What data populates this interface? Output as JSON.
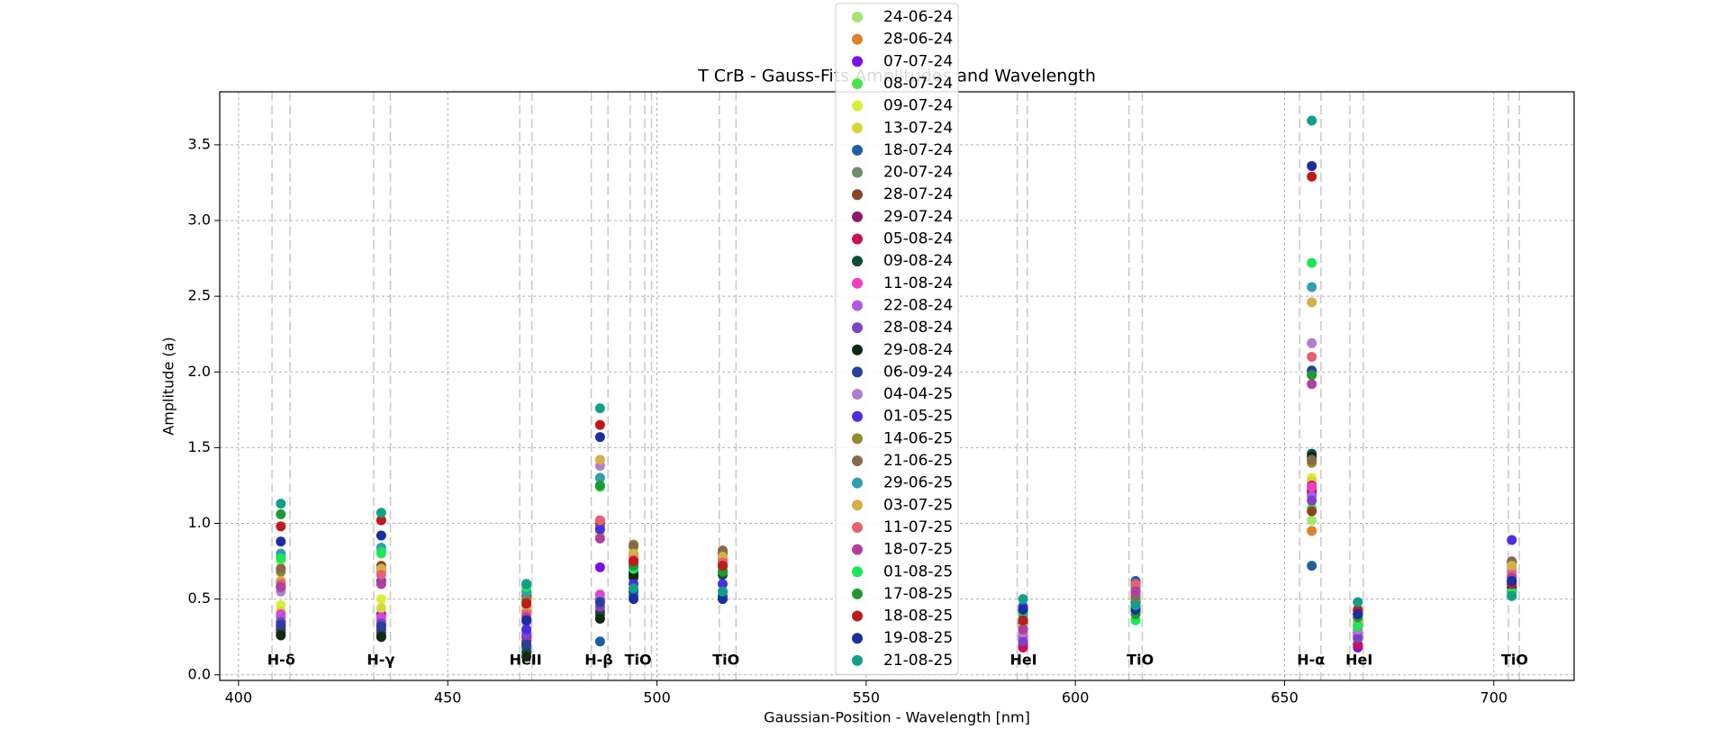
{
  "chart_data": {
    "type": "scatter",
    "title": "T CrB - Gauss-Fits Amplitudes and Wavelength",
    "x_label": "Gaussian-Position - Wavelength [nm]",
    "y_label": "Amplitude (a)",
    "xlim": [
      395.5,
      719.2
    ],
    "ylim": [
      -0.037,
      3.85
    ],
    "xticks": [
      400,
      450,
      500,
      550,
      600,
      650,
      700
    ],
    "yticks": [
      {
        "value": 0,
        "label": "0.0"
      },
      0.5,
      {
        "value": 1,
        "label": "1.0"
      },
      1.5,
      {
        "value": 2,
        "label": "2.0"
      },
      2.5,
      {
        "value": 3,
        "label": "3.0"
      },
      3.5
    ],
    "grid": true,
    "legend": "upper center",
    "window_lines": [
      408,
      412.3,
      432.3,
      436.3,
      467.2,
      470.1,
      484.3,
      488.3,
      493.6,
      497.1,
      498.7,
      514.9,
      518.9,
      586.1,
      588.5,
      612.8,
      616,
      653.6,
      658.7,
      665.6,
      668.8,
      703.5,
      706.1
    ],
    "features": [
      {
        "label": "H-δ",
        "x": 410.2
      },
      {
        "label": "H-γ",
        "x": 434.0
      },
      {
        "label": "HeII",
        "x": 468.6
      },
      {
        "label": "H-β",
        "x": 486.1
      },
      {
        "label": "TiO",
        "x": 495.5
      },
      {
        "label": "TiO",
        "x": 516.5
      },
      {
        "label": "HeI",
        "x": 587.6
      },
      {
        "label": "TiO",
        "x": 615.5
      },
      {
        "label": "H-α",
        "x": 656.3
      },
      {
        "label": "HeI",
        "x": 667.8
      },
      {
        "label": "TiO",
        "x": 705.0
      }
    ],
    "x": [
      410.1,
      434.1,
      468.8,
      486.4,
      494.4,
      515.7,
      587.5,
      614.4,
      656.5,
      667.5,
      704.3
    ],
    "series": [
      {
        "name": "24-06-24",
        "color": "#a6e36f",
        "values": [
          0.75,
          0.82,
          0.55,
          1.25,
          0.72,
          0.7,
          0.35,
          0.45,
          1.02,
          0.3,
          0.6
        ]
      },
      {
        "name": "28-06-24",
        "color": "#e0802a",
        "values": [
          0.6,
          0.68,
          0.42,
          0.98,
          0.78,
          0.76,
          0.28,
          0.55,
          0.95,
          0.25,
          0.7
        ]
      },
      {
        "name": "07-07-24",
        "color": "#7b0fe6",
        "values": [
          0.35,
          0.4,
          0.2,
          0.71,
          0.68,
          0.72,
          0.2,
          0.5,
          1.2,
          0.18,
          0.62
        ]
      },
      {
        "name": "08-07-24",
        "color": "#46e64a",
        "values": [
          0.78,
          0.8,
          0.6,
          1.24,
          0.7,
          0.7,
          0.38,
          0.45,
          1.1,
          0.35,
          0.55
        ]
      },
      {
        "name": "09-07-24",
        "color": "#d8ef3a",
        "values": [
          0.46,
          0.5,
          0.38,
          0.95,
          0.83,
          0.75,
          0.3,
          0.52,
          1.3,
          0.28,
          0.72
        ]
      },
      {
        "name": "13-07-24",
        "color": "#d6d63a",
        "values": [
          0.42,
          0.44,
          0.35,
          0.92,
          0.8,
          0.74,
          0.28,
          0.5,
          1.28,
          0.27,
          0.7
        ]
      },
      {
        "name": "18-07-24",
        "color": "#1f5fa0",
        "values": [
          0.3,
          0.28,
          0.18,
          0.22,
          0.52,
          0.52,
          0.3,
          0.62,
          0.72,
          0.2,
          0.55
        ]
      },
      {
        "name": "20-07-24",
        "color": "#6f8d6a",
        "values": [
          0.62,
          0.7,
          0.5,
          1.02,
          0.75,
          0.78,
          0.3,
          0.48,
          1.42,
          0.3,
          0.68
        ]
      },
      {
        "name": "28-07-24",
        "color": "#8b4526",
        "values": [
          0.7,
          0.72,
          0.52,
          1.0,
          0.8,
          0.8,
          0.25,
          0.5,
          1.08,
          0.28,
          0.74
        ]
      },
      {
        "name": "29-07-24",
        "color": "#8b1a6b",
        "values": [
          0.32,
          0.3,
          0.25,
          0.5,
          0.7,
          0.72,
          0.22,
          0.48,
          1.22,
          0.25,
          0.6
        ]
      },
      {
        "name": "05-08-24",
        "color": "#cc1050",
        "values": [
          0.3,
          0.33,
          0.22,
          0.42,
          0.66,
          0.7,
          0.18,
          0.55,
          1.25,
          0.2,
          0.62
        ]
      },
      {
        "name": "09-08-24",
        "color": "#0f4d3a",
        "values": [
          0.28,
          0.26,
          0.15,
          0.4,
          0.64,
          0.66,
          0.3,
          0.45,
          1.46,
          0.38,
          0.55
        ]
      },
      {
        "name": "11-08-24",
        "color": "#ee3fc0",
        "values": [
          0.4,
          0.38,
          0.3,
          0.53,
          0.75,
          0.76,
          0.26,
          0.58,
          1.24,
          0.28,
          0.65
        ]
      },
      {
        "name": "22-08-24",
        "color": "#b257e6",
        "values": [
          0.38,
          0.36,
          0.28,
          0.5,
          0.72,
          0.74,
          0.24,
          0.56,
          1.18,
          0.26,
          0.64
        ]
      },
      {
        "name": "28-08-24",
        "color": "#7c44c4",
        "values": [
          0.35,
          0.34,
          0.26,
          0.45,
          0.7,
          0.72,
          0.22,
          0.54,
          1.15,
          0.24,
          0.62
        ]
      },
      {
        "name": "29-08-24",
        "color": "#0f2a0f",
        "values": [
          0.26,
          0.25,
          0.12,
          0.37,
          0.66,
          0.68,
          0.34,
          0.42,
          1.44,
          0.4,
          0.58
        ]
      },
      {
        "name": "06-09-24",
        "color": "#2a3e9e",
        "values": [
          0.33,
          0.32,
          0.2,
          0.48,
          0.55,
          0.55,
          0.42,
          0.6,
          2.01,
          0.42,
          0.6
        ]
      },
      {
        "name": "04-04-25",
        "color": "#b07ed0",
        "values": [
          0.55,
          0.6,
          0.35,
          1.38,
          0.72,
          0.74,
          0.28,
          0.52,
          2.19,
          0.3,
          0.68
        ]
      },
      {
        "name": "01-05-25",
        "color": "#4a2ee6",
        "values": [
          0.58,
          0.62,
          0.3,
          0.96,
          0.6,
          0.6,
          0.45,
          0.55,
          1.98,
          0.4,
          0.89
        ]
      },
      {
        "name": "14-06-25",
        "color": "#8c8c30",
        "values": [
          0.68,
          0.7,
          0.5,
          1.25,
          0.86,
          0.82,
          0.32,
          0.5,
          1.4,
          0.35,
          0.74
        ]
      },
      {
        "name": "21-06-25",
        "color": "#866a4e",
        "values": [
          0.7,
          0.7,
          0.48,
          1.3,
          0.85,
          0.82,
          0.3,
          0.52,
          1.42,
          0.33,
          0.75
        ]
      },
      {
        "name": "29-06-25",
        "color": "#30a0b0",
        "values": [
          0.8,
          0.84,
          0.55,
          1.3,
          0.76,
          0.72,
          0.4,
          0.58,
          2.56,
          0.42,
          0.55
        ]
      },
      {
        "name": "03-07-25",
        "color": "#d4b048",
        "values": [
          0.62,
          0.7,
          0.45,
          1.42,
          0.8,
          0.78,
          0.32,
          0.55,
          2.46,
          0.35,
          0.72
        ]
      },
      {
        "name": "11-07-25",
        "color": "#e66070",
        "values": [
          0.6,
          0.66,
          0.4,
          1.02,
          0.76,
          0.74,
          0.3,
          0.6,
          2.1,
          0.32,
          0.66
        ]
      },
      {
        "name": "18-07-25",
        "color": "#b040a0",
        "values": [
          0.58,
          0.6,
          0.38,
          0.9,
          0.74,
          0.72,
          0.3,
          0.55,
          1.92,
          0.32,
          0.64
        ]
      },
      {
        "name": "01-08-25",
        "color": "#18e858",
        "values": [
          0.77,
          0.81,
          0.58,
          1.25,
          0.7,
          0.7,
          0.42,
          0.36,
          2.72,
          0.32,
          0.54
        ]
      },
      {
        "name": "17-08-25",
        "color": "#1f9a30",
        "values": [
          1.06,
          1.02,
          0.6,
          1.25,
          0.72,
          0.68,
          0.36,
          0.4,
          1.98,
          0.38,
          0.52
        ]
      },
      {
        "name": "18-08-25",
        "color": "#c01a1a",
        "values": [
          0.98,
          1.02,
          0.47,
          1.65,
          0.75,
          0.72,
          0.36,
          0.44,
          3.29,
          0.43,
          0.6
        ]
      },
      {
        "name": "19-08-25",
        "color": "#1a2ea0",
        "values": [
          0.88,
          0.92,
          0.36,
          1.57,
          0.5,
          0.5,
          0.43,
          0.43,
          3.36,
          0.4,
          0.62
        ]
      },
      {
        "name": "21-08-25",
        "color": "#10a088",
        "values": [
          1.13,
          1.07,
          0.6,
          1.76,
          0.57,
          0.55,
          0.5,
          0.46,
          3.66,
          0.48,
          0.52
        ]
      }
    ]
  }
}
